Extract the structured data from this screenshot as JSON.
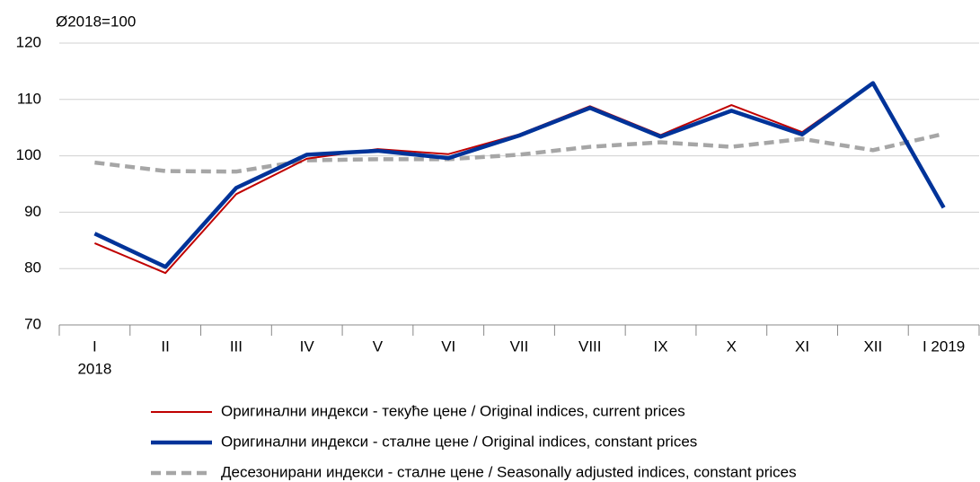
{
  "chart_data": {
    "type": "line",
    "y_label": "Ø2018=100",
    "categories": [
      "I",
      "II",
      "III",
      "IV",
      "V",
      "VI",
      "VII",
      "VIII",
      "IX",
      "X",
      "XI",
      "XII",
      "I 2019"
    ],
    "x_sublabel": "2018",
    "series": [
      {
        "name": "Оригинални индекси - текуће цене / Original indices, current prices",
        "color": "#c00000",
        "style": "thin",
        "values": [
          84.5,
          79.2,
          93.2,
          99.5,
          101.2,
          100.3,
          103.8,
          108.8,
          103.7,
          109,
          104.2,
          113,
          91
        ]
      },
      {
        "name": "Оригинални индекси - сталне цене / Original indices, constant prices",
        "color": "#003399",
        "style": "thick",
        "values": [
          86.2,
          80.3,
          94.3,
          100.2,
          100.9,
          99.6,
          103.6,
          108.5,
          103.4,
          108,
          103.8,
          112.9,
          90.8
        ]
      },
      {
        "name": "Десезонирани индекси - сталне цене / Seasonally adjusted indices, constant prices",
        "color": "#a6a6a6",
        "style": "dashed",
        "values": [
          98.8,
          97.3,
          97.2,
          99.2,
          99.4,
          99.4,
          100.2,
          101.6,
          102.4,
          101.6,
          103,
          101,
          103.9
        ]
      }
    ],
    "ylim": [
      70,
      120
    ],
    "yticks": [
      70,
      80,
      90,
      100,
      110,
      120
    ],
    "grid": true
  }
}
